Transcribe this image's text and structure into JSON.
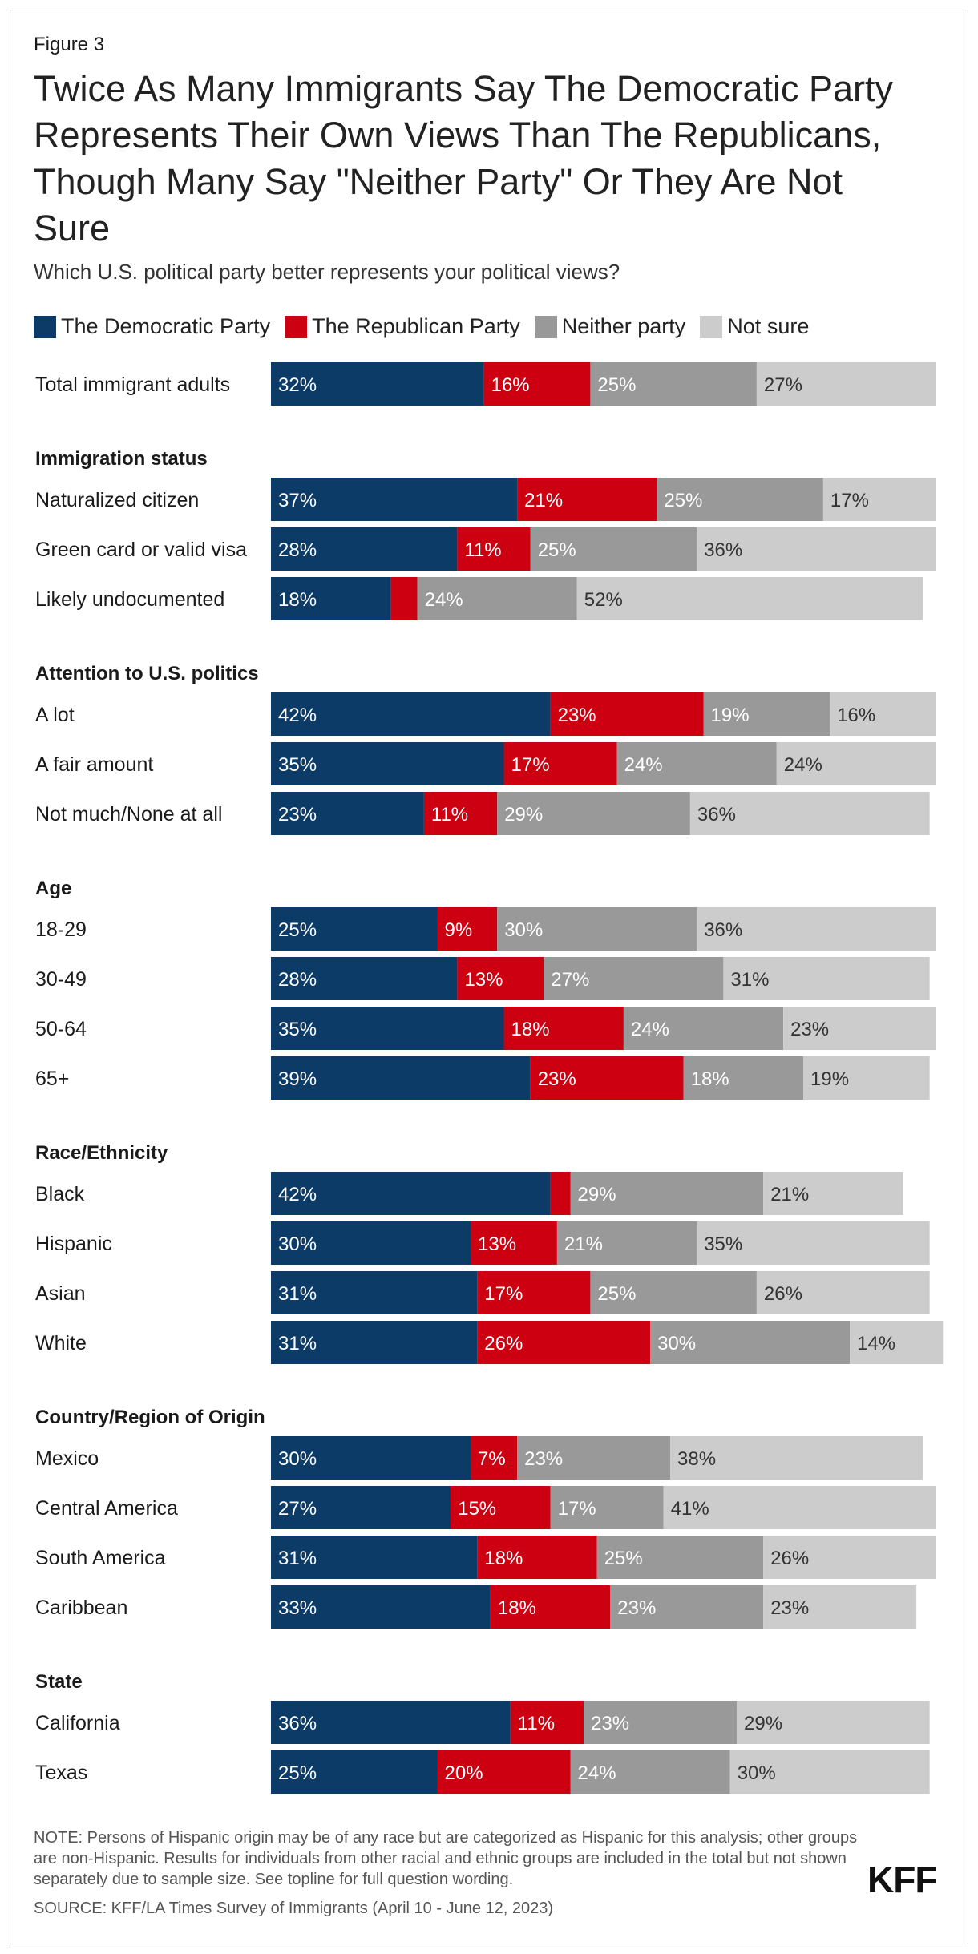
{
  "figure_label": "Figure 3",
  "title": "Twice As Many Immigrants Say The Democratic Party Represents Their Own Views Than The Republicans, Though Many Say \"Neither Party\" Or They Are Not Sure",
  "subtitle": "Which U.S. political party better represents your political views?",
  "note": "NOTE: Persons of Hispanic origin may be of any race but are categorized as Hispanic for this analysis; other groups are non-Hispanic. Results for individuals from other racial and ethnic groups are included in the total but not shown separately due to sample size. See topline for full question wording.",
  "source": "SOURCE: KFF/LA Times Survey of Immigrants (April 10 - June 12, 2023)",
  "logo": "KFF",
  "legend": [
    {
      "label": "The Democratic Party",
      "color": "#0b3b66"
    },
    {
      "label": "The Republican Party",
      "color": "#cc0011"
    },
    {
      "label": "Neither party",
      "color": "#999999"
    },
    {
      "label": "Not sure",
      "color": "#cccccc"
    }
  ],
  "chart_data": {
    "type": "bar",
    "orientation": "horizontal",
    "stacked": true,
    "unit": "%",
    "series": [
      {
        "name": "The Democratic Party",
        "color": "#0b3b66"
      },
      {
        "name": "The Republican Party",
        "color": "#cc0011"
      },
      {
        "name": "Neither party",
        "color": "#999999"
      },
      {
        "name": "Not sure",
        "color": "#cccccc"
      }
    ],
    "groups": [
      {
        "heading": "",
        "rows": [
          {
            "label": "Total immigrant adults",
            "values": [
              32,
              16,
              25,
              27
            ],
            "labels": [
              "32%",
              "16%",
              "25%",
              "27%"
            ]
          }
        ]
      },
      {
        "heading": "Immigration status",
        "rows": [
          {
            "label": "Naturalized citizen",
            "values": [
              37,
              21,
              25,
              17
            ],
            "labels": [
              "37%",
              "21%",
              "25%",
              "17%"
            ]
          },
          {
            "label": "Green card or valid visa",
            "values": [
              28,
              11,
              25,
              36
            ],
            "labels": [
              "28%",
              "11%",
              "25%",
              "36%"
            ]
          },
          {
            "label": "Likely undocumented",
            "values": [
              18,
              4,
              24,
              52
            ],
            "labels": [
              "18%",
              "",
              "24%",
              "52%"
            ]
          }
        ]
      },
      {
        "heading": "Attention to U.S. politics",
        "rows": [
          {
            "label": "A lot",
            "values": [
              42,
              23,
              19,
              16
            ],
            "labels": [
              "42%",
              "23%",
              "19%",
              "16%"
            ]
          },
          {
            "label": "A fair amount",
            "values": [
              35,
              17,
              24,
              24
            ],
            "labels": [
              "35%",
              "17%",
              "24%",
              "24%"
            ]
          },
          {
            "label": "Not much/None at all",
            "values": [
              23,
              11,
              29,
              36
            ],
            "labels": [
              "23%",
              "11%",
              "29%",
              "36%"
            ]
          }
        ]
      },
      {
        "heading": "Age",
        "rows": [
          {
            "label": "18-29",
            "values": [
              25,
              9,
              30,
              36
            ],
            "labels": [
              "25%",
              "9%",
              "30%",
              "36%"
            ]
          },
          {
            "label": "30-49",
            "values": [
              28,
              13,
              27,
              31
            ],
            "labels": [
              "28%",
              "13%",
              "27%",
              "31%"
            ]
          },
          {
            "label": "50-64",
            "values": [
              35,
              18,
              24,
              23
            ],
            "labels": [
              "35%",
              "18%",
              "24%",
              "23%"
            ]
          },
          {
            "label": "65+",
            "values": [
              39,
              23,
              18,
              19
            ],
            "labels": [
              "39%",
              "23%",
              "18%",
              "19%"
            ]
          }
        ]
      },
      {
        "heading": "Race/Ethnicity",
        "rows": [
          {
            "label": "Black",
            "values": [
              42,
              3,
              29,
              21
            ],
            "labels": [
              "42%",
              "",
              "29%",
              "21%"
            ]
          },
          {
            "label": "Hispanic",
            "values": [
              30,
              13,
              21,
              35
            ],
            "labels": [
              "30%",
              "13%",
              "21%",
              "35%"
            ]
          },
          {
            "label": "Asian",
            "values": [
              31,
              17,
              25,
              26
            ],
            "labels": [
              "31%",
              "17%",
              "25%",
              "26%"
            ]
          },
          {
            "label": "White",
            "values": [
              31,
              26,
              30,
              14
            ],
            "labels": [
              "31%",
              "26%",
              "30%",
              "14%"
            ]
          }
        ]
      },
      {
        "heading": "Country/Region of Origin",
        "rows": [
          {
            "label": "Mexico",
            "values": [
              30,
              7,
              23,
              38
            ],
            "labels": [
              "30%",
              "7%",
              "23%",
              "38%"
            ]
          },
          {
            "label": "Central America",
            "values": [
              27,
              15,
              17,
              41
            ],
            "labels": [
              "27%",
              "15%",
              "17%",
              "41%"
            ]
          },
          {
            "label": "South America",
            "values": [
              31,
              18,
              25,
              26
            ],
            "labels": [
              "31%",
              "18%",
              "25%",
              "26%"
            ]
          },
          {
            "label": "Caribbean",
            "values": [
              33,
              18,
              23,
              23
            ],
            "labels": [
              "33%",
              "18%",
              "23%",
              "23%"
            ]
          }
        ]
      },
      {
        "heading": "State",
        "rows": [
          {
            "label": "California",
            "values": [
              36,
              11,
              23,
              29
            ],
            "labels": [
              "36%",
              "11%",
              "23%",
              "29%"
            ]
          },
          {
            "label": "Texas",
            "values": [
              25,
              20,
              24,
              30
            ],
            "labels": [
              "25%",
              "20%",
              "24%",
              "30%"
            ]
          }
        ]
      }
    ]
  }
}
